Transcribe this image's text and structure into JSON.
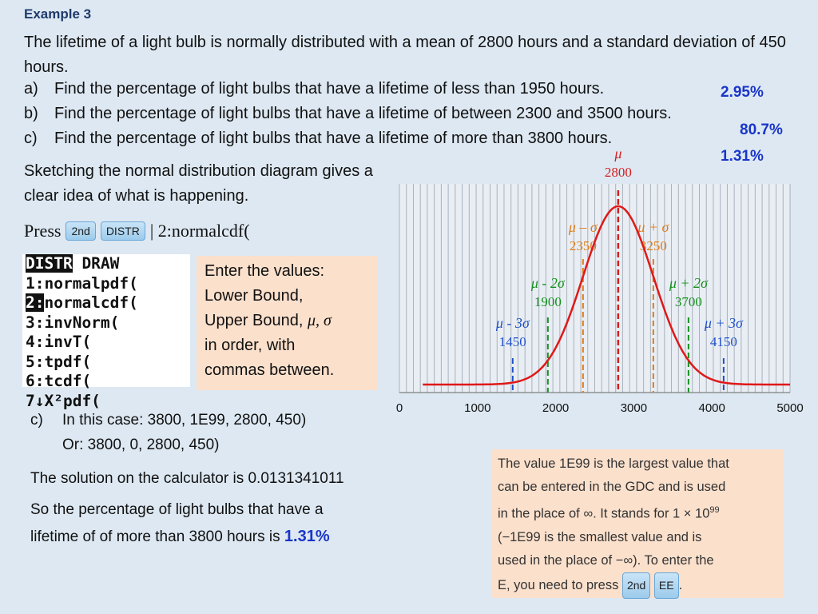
{
  "example_title": "Example 3",
  "problem": {
    "intro": "The lifetime of a light bulb is normally distributed with a mean of 2800 hours and a standard deviation of 450 hours.",
    "questions": [
      {
        "label": "a)",
        "text": "Find the percentage of light bulbs that have a lifetime of less than 1950 hours.",
        "answer": "2.95%"
      },
      {
        "label": "b)",
        "text": "Find the percentage of light bulbs that have a lifetime of between 2300 and 3500 hours.",
        "answer": "80.7%"
      },
      {
        "label": "c)",
        "text": "Find the percentage of light bulbs that have a lifetime of more than 3800 hours.",
        "answer": "1.31%"
      }
    ]
  },
  "sketch_text": "Sketching the normal distribution diagram gives a clear idea of what is happening.",
  "press": {
    "prefix": "Press",
    "key1": "2nd",
    "key2": "DISTR",
    "suffix": "| 2:normalcdf("
  },
  "calculator_screen": {
    "header_selected": "DISTR",
    "header_other": " DRAW",
    "items": [
      "1:normalpdf(",
      "2:normalcdf(",
      "3:invNorm(",
      "4:invT(",
      "5:tpdf(",
      "6:tcdf(",
      "7↓X²pdf("
    ],
    "selected_index": 1
  },
  "enter_box": {
    "line1": "Enter the values:",
    "line2": "Lower Bound,",
    "line3_prefix": "Upper Bound, ",
    "symbols": "μ, σ",
    "line4": "in order, with",
    "line5": "commas between."
  },
  "case": {
    "label": "c)",
    "line1": "In this case: 3800, 1E99, 2800, 450)",
    "line2": "Or: 3800, 0, 2800, 450)",
    "solution": "The solution on the calculator is 0.0131341011",
    "conclusion1": "So the percentage of light bulbs that have a",
    "conclusion2": "lifetime of of more than 3800 hours is",
    "answer": "1.31%"
  },
  "note": {
    "l1": "The value 1E99 is the largest value that",
    "l2": "can be entered in the GDC and is used",
    "l3": "in the place of ∞. It stands for 1 × 10",
    "l3_sup": "99",
    "l4": "(−1E99 is the smallest value and is",
    "l5": "used in the place of −∞). To enter the",
    "l6": "E, you need to press",
    "key1": "2nd",
    "key2": "EE"
  },
  "chart_data": {
    "type": "line",
    "mean": 2800,
    "sd": 450,
    "xlim": [
      0,
      5000
    ],
    "x_ticks": [
      "0",
      "1000",
      "2000",
      "3000",
      "4000",
      "5000"
    ],
    "series": [
      {
        "values": "normal density curve, mean 2800, sd 450"
      }
    ],
    "markers": [
      {
        "value": 2800,
        "symbol": "μ",
        "label": "2800",
        "color": "#d42020"
      },
      {
        "value": 2350,
        "symbol": "μ – σ",
        "label": "2350",
        "color": "#e07b18"
      },
      {
        "value": 3250,
        "symbol": "μ + σ",
        "label": "3250",
        "color": "#e07b18"
      },
      {
        "value": 1900,
        "symbol": "μ - 2σ",
        "label": "1900",
        "color": "#16901e"
      },
      {
        "value": 3700,
        "symbol": "μ + 2σ",
        "label": "3700",
        "color": "#16901e"
      },
      {
        "value": 1450,
        "symbol": "μ - 3σ",
        "label": "1450",
        "color": "#2050c8"
      },
      {
        "value": 4150,
        "symbol": "μ + 3σ",
        "label": "4150",
        "color": "#2050c8"
      }
    ],
    "grid": true
  }
}
